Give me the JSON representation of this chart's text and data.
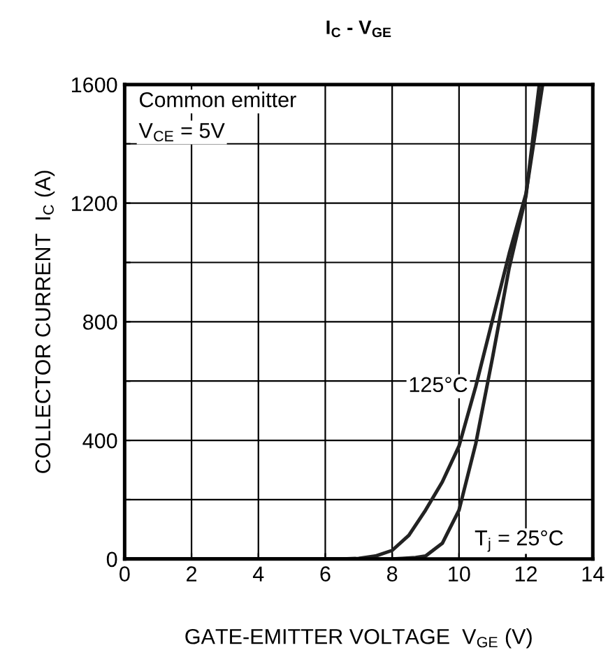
{
  "chart_data": {
    "type": "line",
    "title": "I$_{C}$ - V$_{GE}$",
    "xlabel": "GATE-EMITTER VOLTAGE  V$_{GE}$ (V)",
    "ylabel": "COLLECTOR CURRENT  I$_{C}$ (A)",
    "annotations": [
      "Common emitter",
      "V$_{CE}$ = 5V",
      {
        "text": "125°C",
        "x": 10.5,
        "y": 582
      },
      {
        "text": "T$_{j}$ = 25°C",
        "x": 10,
        "y": 165
      }
    ],
    "series": [
      {
        "color": "#222222",
        "x": [
          0,
          6.5,
          7,
          7.5,
          8,
          8.5,
          9,
          9.5,
          10,
          10.5,
          11,
          11.5,
          12,
          12.5
        ],
        "values": [
          0,
          0,
          2,
          10,
          29,
          80,
          165,
          260,
          381,
          582,
          806,
          1030,
          1231,
          1600
        ]
      },
      {
        "color": "#222222",
        "x": [
          0,
          8,
          8.3,
          8.7,
          9,
          9.5,
          10,
          10.5,
          11,
          11.5,
          12,
          12.4
        ],
        "values": [
          0,
          0,
          2,
          5,
          10,
          53,
          165,
          389,
          678,
          982,
          1223,
          1600
        ]
      }
    ],
    "xlim": [
      0,
      14
    ],
    "ylim": [
      0,
      1600
    ],
    "xticks": [
      0,
      2,
      4,
      6,
      8,
      10,
      12,
      14
    ],
    "yticks": [
      0,
      {
        "value": 200,
        "label": null
      },
      400,
      {
        "value": 600,
        "label": null
      },
      800,
      {
        "value": 1000,
        "label": null
      },
      1200,
      {
        "value": 1400,
        "label": null
      },
      1600
    ],
    "grid": true,
    "line_style": "solid"
  }
}
